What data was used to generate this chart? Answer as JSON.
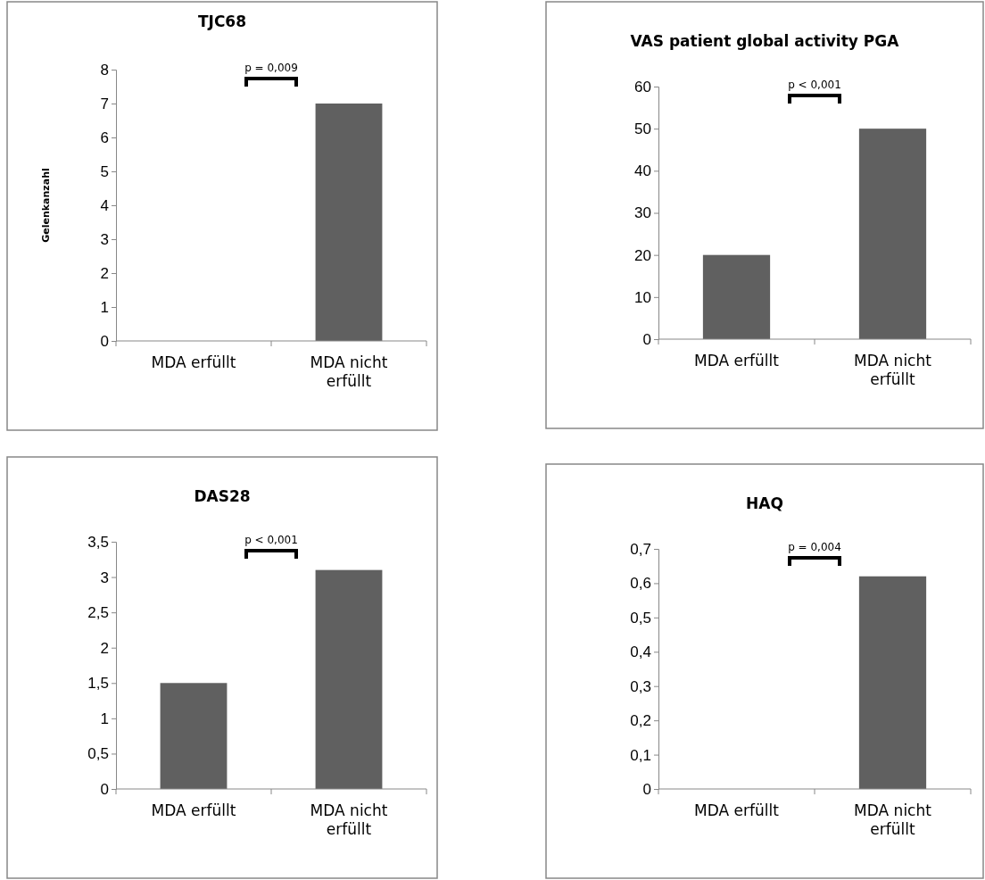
{
  "chart_data": [
    {
      "type": "bar",
      "title": "TJC68",
      "ylabel": "Gelenkanzahl",
      "categories": [
        "MDA erfüllt",
        "MDA nicht erfüllt"
      ],
      "values": [
        0,
        7
      ],
      "color": "#606060",
      "ylim": [
        0,
        8
      ],
      "yticks": [
        0,
        1,
        2,
        3,
        4,
        5,
        6,
        7,
        8
      ],
      "grid": false,
      "annotations": [
        "p = 0,009"
      ]
    },
    {
      "type": "bar",
      "title": "VAS patient global activity PGA",
      "categories": [
        "MDA erfüllt",
        "MDA nicht erfüllt"
      ],
      "values": [
        20,
        50
      ],
      "color": "#606060",
      "ylim": [
        0,
        60
      ],
      "yticks": [
        0,
        10,
        20,
        30,
        40,
        50,
        60
      ],
      "grid": false,
      "annotations": [
        "p < 0,001"
      ]
    },
    {
      "type": "bar",
      "title": "DAS28",
      "categories": [
        "MDA erfüllt",
        "MDA nicht erfüllt"
      ],
      "values": [
        1.5,
        3.1
      ],
      "color": "#606060",
      "ylim": [
        0,
        3.5
      ],
      "yticks": [
        0,
        {
          "value": 0.5,
          "label": "0,5"
        },
        1,
        {
          "value": 1.5,
          "label": "1,5"
        },
        2,
        {
          "value": 2.5,
          "label": "2,5"
        },
        3,
        {
          "value": 3.5,
          "label": "3,5"
        }
      ],
      "grid": false,
      "annotations": [
        "p < 0,001"
      ]
    },
    {
      "type": "bar",
      "title": "HAQ",
      "categories": [
        "MDA erfüllt",
        "MDA nicht erfüllt"
      ],
      "values": [
        0,
        0.62
      ],
      "color": "#606060",
      "ylim": [
        0,
        0.7
      ],
      "yticks": [
        0,
        {
          "value": 0.1,
          "label": "0,1"
        },
        {
          "value": 0.2,
          "label": "0,2"
        },
        {
          "value": 0.3,
          "label": "0,3"
        },
        {
          "value": 0.4,
          "label": "0,4"
        },
        {
          "value": 0.5,
          "label": "0,5"
        },
        {
          "value": 0.6,
          "label": "0,6"
        },
        {
          "value": 0.7,
          "label": "0,7"
        }
      ],
      "grid": false,
      "annotations": [
        "p = 0,004"
      ]
    }
  ]
}
